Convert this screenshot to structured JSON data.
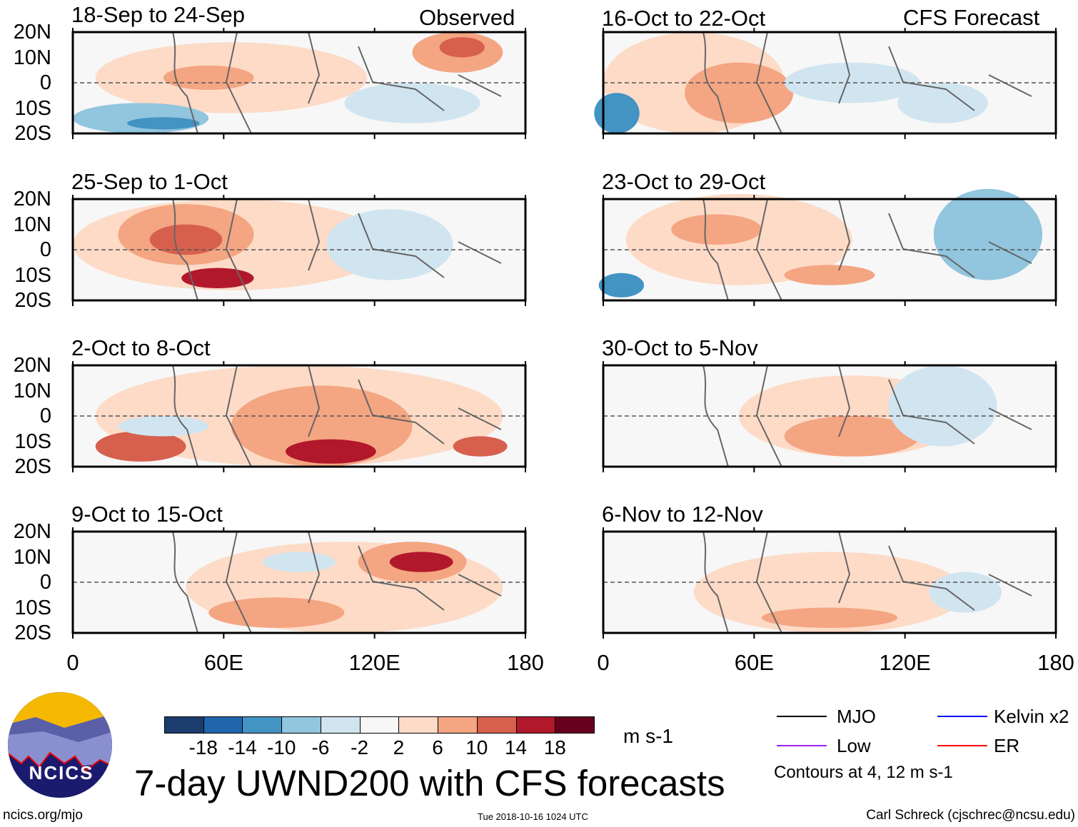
{
  "figure": {
    "title": "7-day UWND200 with CFS forecasts",
    "observed_label": "Observed",
    "forecast_label": "CFS Forecast",
    "logo_text": "NCICS",
    "website": "ncics.org/mjo",
    "timestamp": "Tue 2018-10-16 1024 UTC",
    "author": "Carl Schreck (cjschrec@ncsu.edu)"
  },
  "axes": {
    "lat_labels": [
      "20N",
      "10N",
      "0",
      "10S",
      "20S"
    ],
    "lon_labels": [
      "0",
      "60E",
      "120E",
      "180"
    ]
  },
  "panels_observed": [
    {
      "period": "18-Sep to 24-Sep"
    },
    {
      "period": "25-Sep to 1-Oct"
    },
    {
      "period": "2-Oct to 8-Oct"
    },
    {
      "period": "9-Oct to 15-Oct"
    }
  ],
  "panels_forecast": [
    {
      "period": "16-Oct to 22-Oct"
    },
    {
      "period": "23-Oct to 29-Oct"
    },
    {
      "period": "30-Oct to 5-Nov"
    },
    {
      "period": "6-Nov to 12-Nov"
    }
  ],
  "colorbar": {
    "unit": "m s-1",
    "labels": [
      "-18",
      "-14",
      "-10",
      "-6",
      "-2",
      "2",
      "6",
      "10",
      "14",
      "18"
    ],
    "colors": [
      "#1b3d6e",
      "#2166ac",
      "#4393c3",
      "#92c5de",
      "#d1e5f0",
      "#f7f7f7",
      "#fddbc7",
      "#f4a582",
      "#d6604d",
      "#b2182b",
      "#67001f"
    ]
  },
  "legend": {
    "items": [
      {
        "label": "MJO",
        "color": "#000000"
      },
      {
        "label": "Kelvin x2",
        "color": "#0000ff"
      },
      {
        "label": "Low",
        "color": "#a020f0"
      },
      {
        "label": "ER",
        "color": "#ff0000"
      }
    ],
    "note": "Contours at 4, 12 m s-1"
  }
}
